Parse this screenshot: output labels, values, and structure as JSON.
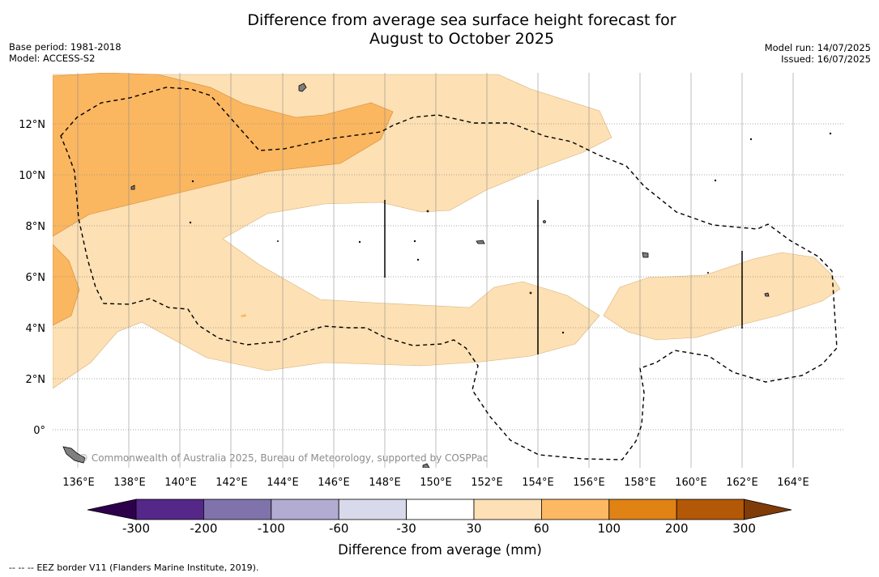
{
  "header": {
    "title_line1": "Difference from average sea surface height forecast for",
    "title_line2": "August to October 2025",
    "base_period": "Base period: 1981-2018",
    "model": "Model: ACCESS-S2",
    "model_run": "Model run: 14/07/2025",
    "issued": "Issued: 16/07/2025"
  },
  "map": {
    "lon_labels": [
      "136°E",
      "138°E",
      "140°E",
      "142°E",
      "144°E",
      "146°E",
      "148°E",
      "150°E",
      "152°E",
      "154°E",
      "156°E",
      "158°E",
      "160°E",
      "162°E",
      "164°E"
    ],
    "lat_labels": [
      "12°N",
      "10°N",
      "8°N",
      "6°N",
      "4°N",
      "2°N",
      "0°"
    ],
    "copyright": "© Commonwealth of Australia 2025, Bureau of Meteorology, supported by COSPPac",
    "colors": {
      "band_30_60": "#fde0b3",
      "band_60_100": "#fbb660",
      "land": "#7f7f7f",
      "grid": "#7f7f7f"
    }
  },
  "colorbar": {
    "title": "Difference from average (mm)",
    "tick_labels": [
      "-300",
      "-200",
      "-100",
      "-60",
      "-30",
      "30",
      "60",
      "100",
      "200",
      "300"
    ],
    "under_color": "#2d004b",
    "over_color": "#7f3b08",
    "colors": [
      "#542788",
      "#8073ac",
      "#b2abd2",
      "#d8daeb",
      "#ffffff",
      "#fee0b6",
      "#fdb863",
      "#e08214",
      "#b35806"
    ]
  },
  "footer": {
    "legend_symbol": "--  --  --",
    "legend_text": "EEZ border V11 (Flanders Marine Institute, 2019)."
  }
}
